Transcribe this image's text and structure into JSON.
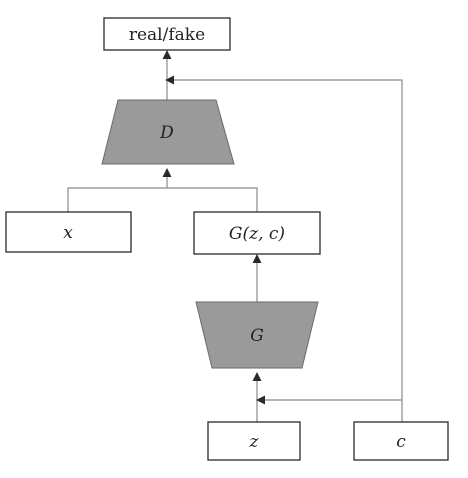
{
  "nodes": {
    "output": "real/fake",
    "discriminator": "D",
    "real_input": "x",
    "generated": "G(z, c)",
    "generator": "G",
    "noise": "z",
    "condition": "c"
  }
}
